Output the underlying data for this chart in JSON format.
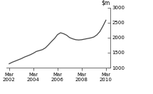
{
  "x_values": [
    2002.25,
    2002.5,
    2002.75,
    2003.0,
    2003.25,
    2003.5,
    2003.75,
    2004.0,
    2004.25,
    2004.5,
    2004.75,
    2005.0,
    2005.25,
    2005.5,
    2005.75,
    2006.0,
    2006.25,
    2006.5,
    2006.75,
    2007.0,
    2007.25,
    2007.5,
    2007.75,
    2008.0,
    2008.25,
    2008.5,
    2008.75,
    2009.0,
    2009.25,
    2009.5,
    2009.75,
    2010.0,
    2010.25
  ],
  "y_values": [
    1130,
    1180,
    1220,
    1260,
    1300,
    1350,
    1390,
    1430,
    1480,
    1540,
    1570,
    1600,
    1660,
    1760,
    1870,
    1970,
    2100,
    2160,
    2130,
    2080,
    2000,
    1960,
    1930,
    1920,
    1930,
    1950,
    1970,
    1990,
    2020,
    2090,
    2200,
    2380,
    2580
  ],
  "ylim": [
    1000,
    3000
  ],
  "yticks": [
    1000,
    1500,
    2000,
    2500,
    3000
  ],
  "ytick_labels": [
    "1000",
    "1500",
    "2000",
    "2500",
    "3000"
  ],
  "xticks": [
    2002.25,
    2004.25,
    2006.25,
    2008.25,
    2010.25
  ],
  "xtick_labels": [
    "Mar\n2002",
    "Mar\n2004",
    "Mar\n2006",
    "Mar\n2008",
    "Mar\n2010"
  ],
  "line_color": "#444444",
  "line_width": 0.9,
  "background_color": "#ffffff",
  "spine_color": "#555555",
  "xlim": [
    2002.0,
    2010.6
  ]
}
